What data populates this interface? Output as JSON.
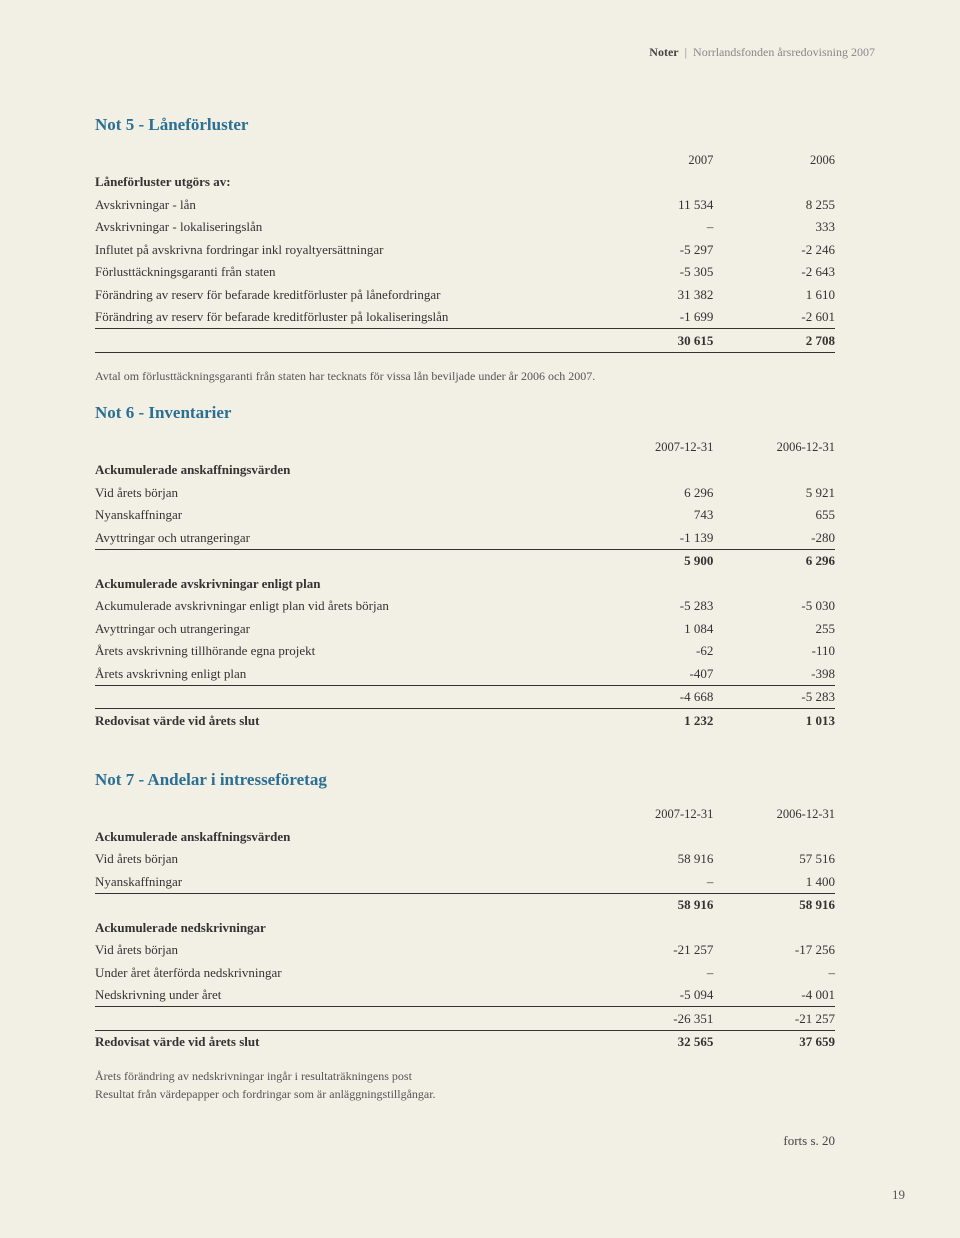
{
  "header": {
    "section": "Noter",
    "title": "Norrlandsfonden årsredovisning 2007"
  },
  "page_number": "19",
  "forts": "forts s. 20",
  "not5": {
    "title": "Not 5 - Låneförluster",
    "col1": "2007",
    "col2": "2006",
    "intro_label": "Låneförluster utgörs av:",
    "rows": [
      {
        "label": "Avskrivningar - lån",
        "c1": "11 534",
        "c2": "8 255"
      },
      {
        "label": "Avskrivningar - lokaliseringslån",
        "c1": "–",
        "c2": "333"
      },
      {
        "label": "Influtet på avskrivna fordringar inkl royaltyersättningar",
        "c1": "-5 297",
        "c2": "-2 246"
      },
      {
        "label": "Förlusttäckningsgaranti från staten",
        "c1": "-5 305",
        "c2": "-2 643"
      },
      {
        "label": "Förändring av reserv för befarade kreditförluster på lånefordringar",
        "c1": "31 382",
        "c2": "1 610"
      },
      {
        "label": "Förändring av reserv för befarade kreditförluster på lokaliseringslån",
        "c1": "-1 699",
        "c2": "-2 601"
      }
    ],
    "total": {
      "c1": "30 615",
      "c2": "2 708"
    },
    "footnote": "Avtal om förlusttäckningsgaranti från staten har tecknats för vissa lån beviljade under år 2006 och 2007."
  },
  "not6": {
    "title": "Not 6 - Inventarier",
    "col1": "2007-12-31",
    "col2": "2006-12-31",
    "sec1_label": "Ackumulerade anskaffningsvärden",
    "sec1_rows": [
      {
        "label": "Vid årets början",
        "c1": "6 296",
        "c2": "5 921"
      },
      {
        "label": "Nyanskaffningar",
        "c1": "743",
        "c2": "655"
      },
      {
        "label": "Avyttringar och utrangeringar",
        "c1": "-1 139",
        "c2": "-280"
      }
    ],
    "sec1_total": {
      "c1": "5 900",
      "c2": "6 296"
    },
    "sec2_label": "Ackumulerade avskrivningar enligt plan",
    "sec2_rows": [
      {
        "label": "Ackumulerade avskrivningar enligt plan vid årets början",
        "c1": "-5 283",
        "c2": "-5 030"
      },
      {
        "label": "Avyttringar och utrangeringar",
        "c1": "1 084",
        "c2": "255"
      },
      {
        "label": "Årets avskrivning tillhörande egna projekt",
        "c1": "-62",
        "c2": "-110"
      },
      {
        "label": "Årets avskrivning enligt plan",
        "c1": "-407",
        "c2": "-398"
      }
    ],
    "sec2_total": {
      "c1": "-4 668",
      "c2": "-5 283"
    },
    "final_label": "Redovisat värde vid årets slut",
    "final": {
      "c1": "1 232",
      "c2": "1 013"
    }
  },
  "not7": {
    "title": "Not 7 - Andelar i intresseföretag",
    "col1": "2007-12-31",
    "col2": "2006-12-31",
    "sec1_label": "Ackumulerade anskaffningsvärden",
    "sec1_rows": [
      {
        "label": "Vid årets början",
        "c1": "58 916",
        "c2": "57 516"
      },
      {
        "label": "Nyanskaffningar",
        "c1": "–",
        "c2": "1 400"
      }
    ],
    "sec1_total": {
      "c1": "58 916",
      "c2": "58 916"
    },
    "sec2_label": "Ackumulerade nedskrivningar",
    "sec2_rows": [
      {
        "label": "Vid årets början",
        "c1": "-21 257",
        "c2": "-17 256"
      },
      {
        "label": "Under året återförda nedskrivningar",
        "c1": "–",
        "c2": "–"
      },
      {
        "label": "Nedskrivning under året",
        "c1": "-5 094",
        "c2": "-4 001"
      }
    ],
    "sec2_total": {
      "c1": "-26 351",
      "c2": "-21 257"
    },
    "final_label": "Redovisat värde vid årets slut",
    "final": {
      "c1": "32 565",
      "c2": "37 659"
    },
    "footnote1": "Årets förändring av nedskrivningar ingår i resultaträkningens post",
    "footnote2": "Resultat från värdepapper och fordringar som är anläggningstillgångar."
  }
}
